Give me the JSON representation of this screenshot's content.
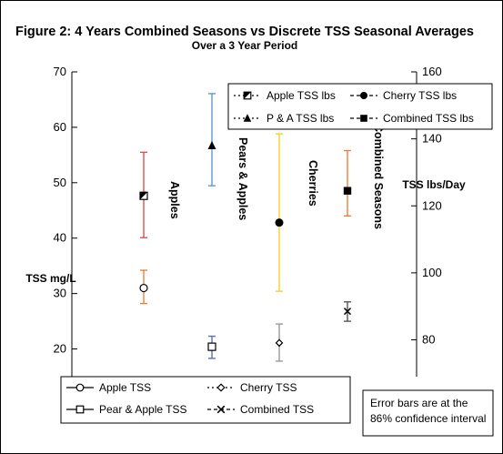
{
  "chart_data": {
    "type": "scatter",
    "title": "Figure 2: 4 Years Combined Seasons vs Discrete TSS Seasonal Averages",
    "subtitle": "Over a 3 Year Period",
    "y_left": {
      "label": "TSS mg/L",
      "ylim": [
        15,
        70
      ],
      "ticks": [
        20,
        30,
        40,
        50,
        60,
        70
      ]
    },
    "y_right": {
      "label": "TSS lbs/Day",
      "ylim": [
        69,
        160
      ],
      "ticks": [
        80,
        100,
        120,
        140,
        160
      ]
    },
    "grid": false,
    "legend_top": [
      {
        "label": "Apple TSS lbs",
        "marker": "half-square",
        "line": "dotted"
      },
      {
        "label": "Cherry TSS lbs",
        "marker": "circle",
        "line": "dashed"
      },
      {
        "label": "P & A TSS lbs",
        "marker": "triangle",
        "line": "dotted"
      },
      {
        "label": "Combined TSS lbs",
        "marker": "square",
        "line": "dashed"
      }
    ],
    "legend_bottom": [
      {
        "label": "Apple TSS",
        "marker": "open-circle",
        "line": "solid"
      },
      {
        "label": "Cherry TSS",
        "marker": "open-diamond",
        "line": "dotted"
      },
      {
        "label": "Pear & Apple TSS",
        "marker": "open-square",
        "line": "solid"
      },
      {
        "label": "Combined TSS",
        "marker": "x",
        "line": "dashed"
      }
    ],
    "series": [
      {
        "name": "Apple TSS lbs",
        "axis": "right",
        "marker": "half-square",
        "value": 123,
        "err": [
          110.5,
          136
        ],
        "color": "#d9534f"
      },
      {
        "name": "P & A TSS lbs",
        "axis": "right",
        "marker": "triangle",
        "value": 138,
        "err": [
          126,
          153.5
        ],
        "color": "#5b9bd5"
      },
      {
        "name": "Cherry TSS lbs",
        "axis": "right",
        "marker": "circle",
        "value": 115,
        "err": [
          94.5,
          141.5
        ],
        "color": "#f5d22b"
      },
      {
        "name": "Combined TSS lbs",
        "axis": "right",
        "marker": "square",
        "value": 124.5,
        "err": [
          117,
          136.5
        ],
        "color": "#e8833a"
      },
      {
        "name": "Apple TSS",
        "axis": "left",
        "marker": "open-circle",
        "value": 31,
        "err": [
          28.2,
          34.2
        ],
        "color": "#e8833a"
      },
      {
        "name": "Pear & Apple TSS",
        "axis": "left",
        "marker": "open-square",
        "value": 20.4,
        "err": [
          18.3,
          22.3
        ],
        "color": "#5b6fb5"
      },
      {
        "name": "Cherry TSS",
        "axis": "left",
        "marker": "open-diamond",
        "value": 21.1,
        "err": [
          17.8,
          24.5
        ],
        "color": "#999999"
      },
      {
        "name": "Combined TSS",
        "axis": "left",
        "marker": "x",
        "value": 26.8,
        "err": [
          25,
          28.5
        ],
        "color": "#555555"
      }
    ],
    "vertical_labels": [
      "Apples",
      "Pears & Apples",
      "Cherries",
      "Combined Seasons"
    ],
    "note": [
      "Error bars are at the",
      "86% confidence interval"
    ]
  }
}
